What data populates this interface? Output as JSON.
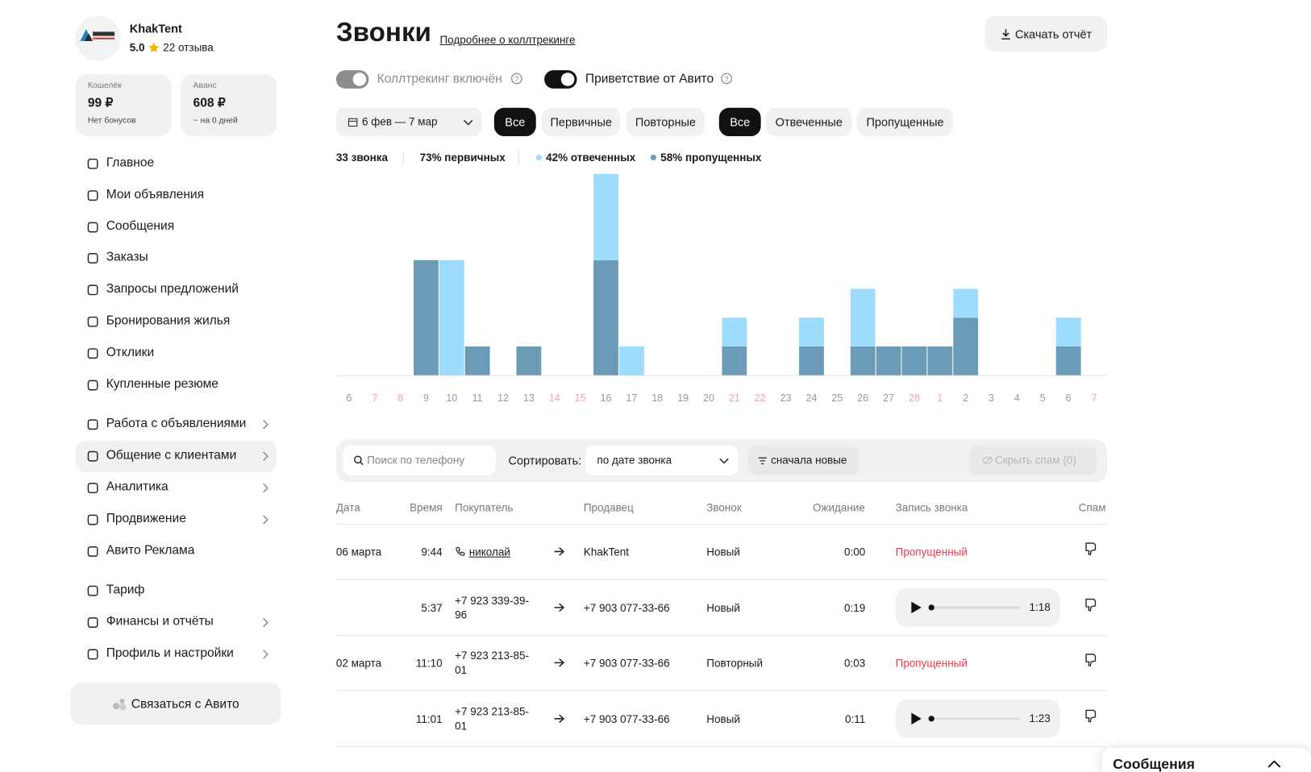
{
  "sidebar": {
    "profile": {
      "name": "KhakTent",
      "rating": "5.0",
      "reviews": "22 отзыва"
    },
    "balances": [
      {
        "label": "Кошелёк",
        "amount": "99 ₽",
        "note": "Нет бонусов"
      },
      {
        "label": "Аванс",
        "amount": "608 ₽",
        "note": "~ на 0 дней"
      }
    ],
    "nav": [
      [
        {
          "label": "Главное"
        },
        {
          "label": "Мои объявления"
        },
        {
          "label": "Сообщения"
        },
        {
          "label": "Заказы"
        },
        {
          "label": "Запросы предложений"
        },
        {
          "label": "Бронирования жилья"
        },
        {
          "label": "Отклики"
        },
        {
          "label": "Купленные резюме"
        }
      ],
      [
        {
          "label": "Работа с объявлениями",
          "submenu": true
        },
        {
          "label": "Общение с клиентами",
          "submenu": true,
          "active": true
        },
        {
          "label": "Аналитика",
          "submenu": true
        },
        {
          "label": "Продвижение",
          "submenu": true
        },
        {
          "label": "Авито Реклама"
        }
      ],
      [
        {
          "label": "Тариф"
        },
        {
          "label": "Финансы и отчёты",
          "submenu": true
        },
        {
          "label": "Профиль и настройки",
          "submenu": true
        }
      ]
    ],
    "contact_button": "Связаться с Авито"
  },
  "header": {
    "title": "Звонки",
    "link": "Подробнее о коллтрекинге",
    "download": "Скачать отчёт"
  },
  "toggles": [
    {
      "label": "Коллтрекинг включён",
      "on": true,
      "disabled": true
    },
    {
      "label": "Приветствие от Авито",
      "on": true,
      "disabled": false
    }
  ],
  "filters": {
    "period": "6 фев — 7 мар",
    "call_type": {
      "options": [
        "Все",
        "Первичные",
        "Повторные"
      ],
      "selected": 0
    },
    "call_status": {
      "options": [
        "Все",
        "Отвеченные",
        "Пропущенные"
      ],
      "selected": 0
    }
  },
  "stats": [
    "33 звонка",
    "73% первичных"
  ],
  "chart_data": {
    "type": "bar",
    "stacked": true,
    "categories": [
      "6",
      "7",
      "8",
      "9",
      "10",
      "11",
      "12",
      "13",
      "14",
      "15",
      "16",
      "17",
      "18",
      "19",
      "20",
      "21",
      "22",
      "23",
      "24",
      "25",
      "26",
      "27",
      "28",
      "1",
      "2",
      "3",
      "4",
      "5",
      "6",
      "7"
    ],
    "category_label_colors": [
      "#9a9a9a",
      "#f2a3a3",
      "#f2a3a3",
      "#9a9a9a",
      "#9a9a9a",
      "#9a9a9a",
      "#9a9a9a",
      "#9a9a9a",
      "#f2a3a3",
      "#f2a3a3",
      "#9a9a9a",
      "#9a9a9a",
      "#9a9a9a",
      "#9a9a9a",
      "#9a9a9a",
      "#f2a3a3",
      "#f2a3a3",
      "#9a9a9a",
      "#9a9a9a",
      "#9a9a9a",
      "#9a9a9a",
      "#9a9a9a",
      "#f2a3a3",
      "#f2a3a3",
      "#9a9a9a",
      "#9a9a9a",
      "#9a9a9a",
      "#9a9a9a",
      "#9a9a9a",
      "#f2a3a3"
    ],
    "series": [
      {
        "name": "58% пропущенных",
        "color": "#6b9bb7",
        "values": [
          0,
          0,
          0,
          4,
          0,
          1,
          0,
          1,
          0,
          0,
          4,
          0,
          0,
          0,
          0,
          1,
          0,
          0,
          1,
          0,
          1,
          1,
          1,
          1,
          2,
          0,
          0,
          0,
          1,
          0
        ]
      },
      {
        "name": "42% отвеченных",
        "color": "#9edcfd",
        "values": [
          0,
          0,
          0,
          0,
          4,
          0,
          0,
          0,
          0,
          0,
          3,
          1,
          0,
          0,
          0,
          1,
          0,
          0,
          1,
          0,
          2,
          0,
          0,
          0,
          1,
          0,
          0,
          0,
          1,
          0
        ]
      }
    ],
    "ylim": [
      0,
      7
    ]
  },
  "toolbar": {
    "search_placeholder": "Поиск по телефону",
    "sort_label": "Сортировать:",
    "sort_value": "по дате звонка",
    "order": "сначала новые",
    "hide_spam": "Скрыть спам (0)"
  },
  "table": {
    "columns": [
      "Дата",
      "Время",
      "Покупатель",
      "Продавец",
      "Звонок",
      "Ожидание",
      "Запись звонка",
      "Спам"
    ],
    "rows": [
      {
        "date": "06 марта",
        "time": "9:44",
        "buyer": "николай",
        "buyer_is_contact": true,
        "seller": "KhakTent",
        "call": "Новый",
        "wait": "0:00",
        "record": {
          "status": "Пропущенный"
        }
      },
      {
        "date": null,
        "time": "5:37",
        "buyer": "+7 923 339-39-96",
        "seller": "+7 903 077-33-66",
        "call": "Новый",
        "wait": "0:19",
        "record": {
          "duration": "1:18"
        }
      },
      {
        "date": "02 марта",
        "time": "11:10",
        "buyer": "+7 923 213-85-01",
        "seller": "+7 903 077-33-66",
        "call": "Повторный",
        "wait": "0:03",
        "record": {
          "status": "Пропущенный"
        }
      },
      {
        "date": null,
        "time": "11:01",
        "buyer": "+7 923 213-85-01",
        "seller": "+7 903 077-33-66",
        "call": "Новый",
        "wait": "0:11",
        "record": {
          "duration": "1:23"
        }
      }
    ]
  },
  "chat_widget": {
    "title": "Сообщения"
  }
}
